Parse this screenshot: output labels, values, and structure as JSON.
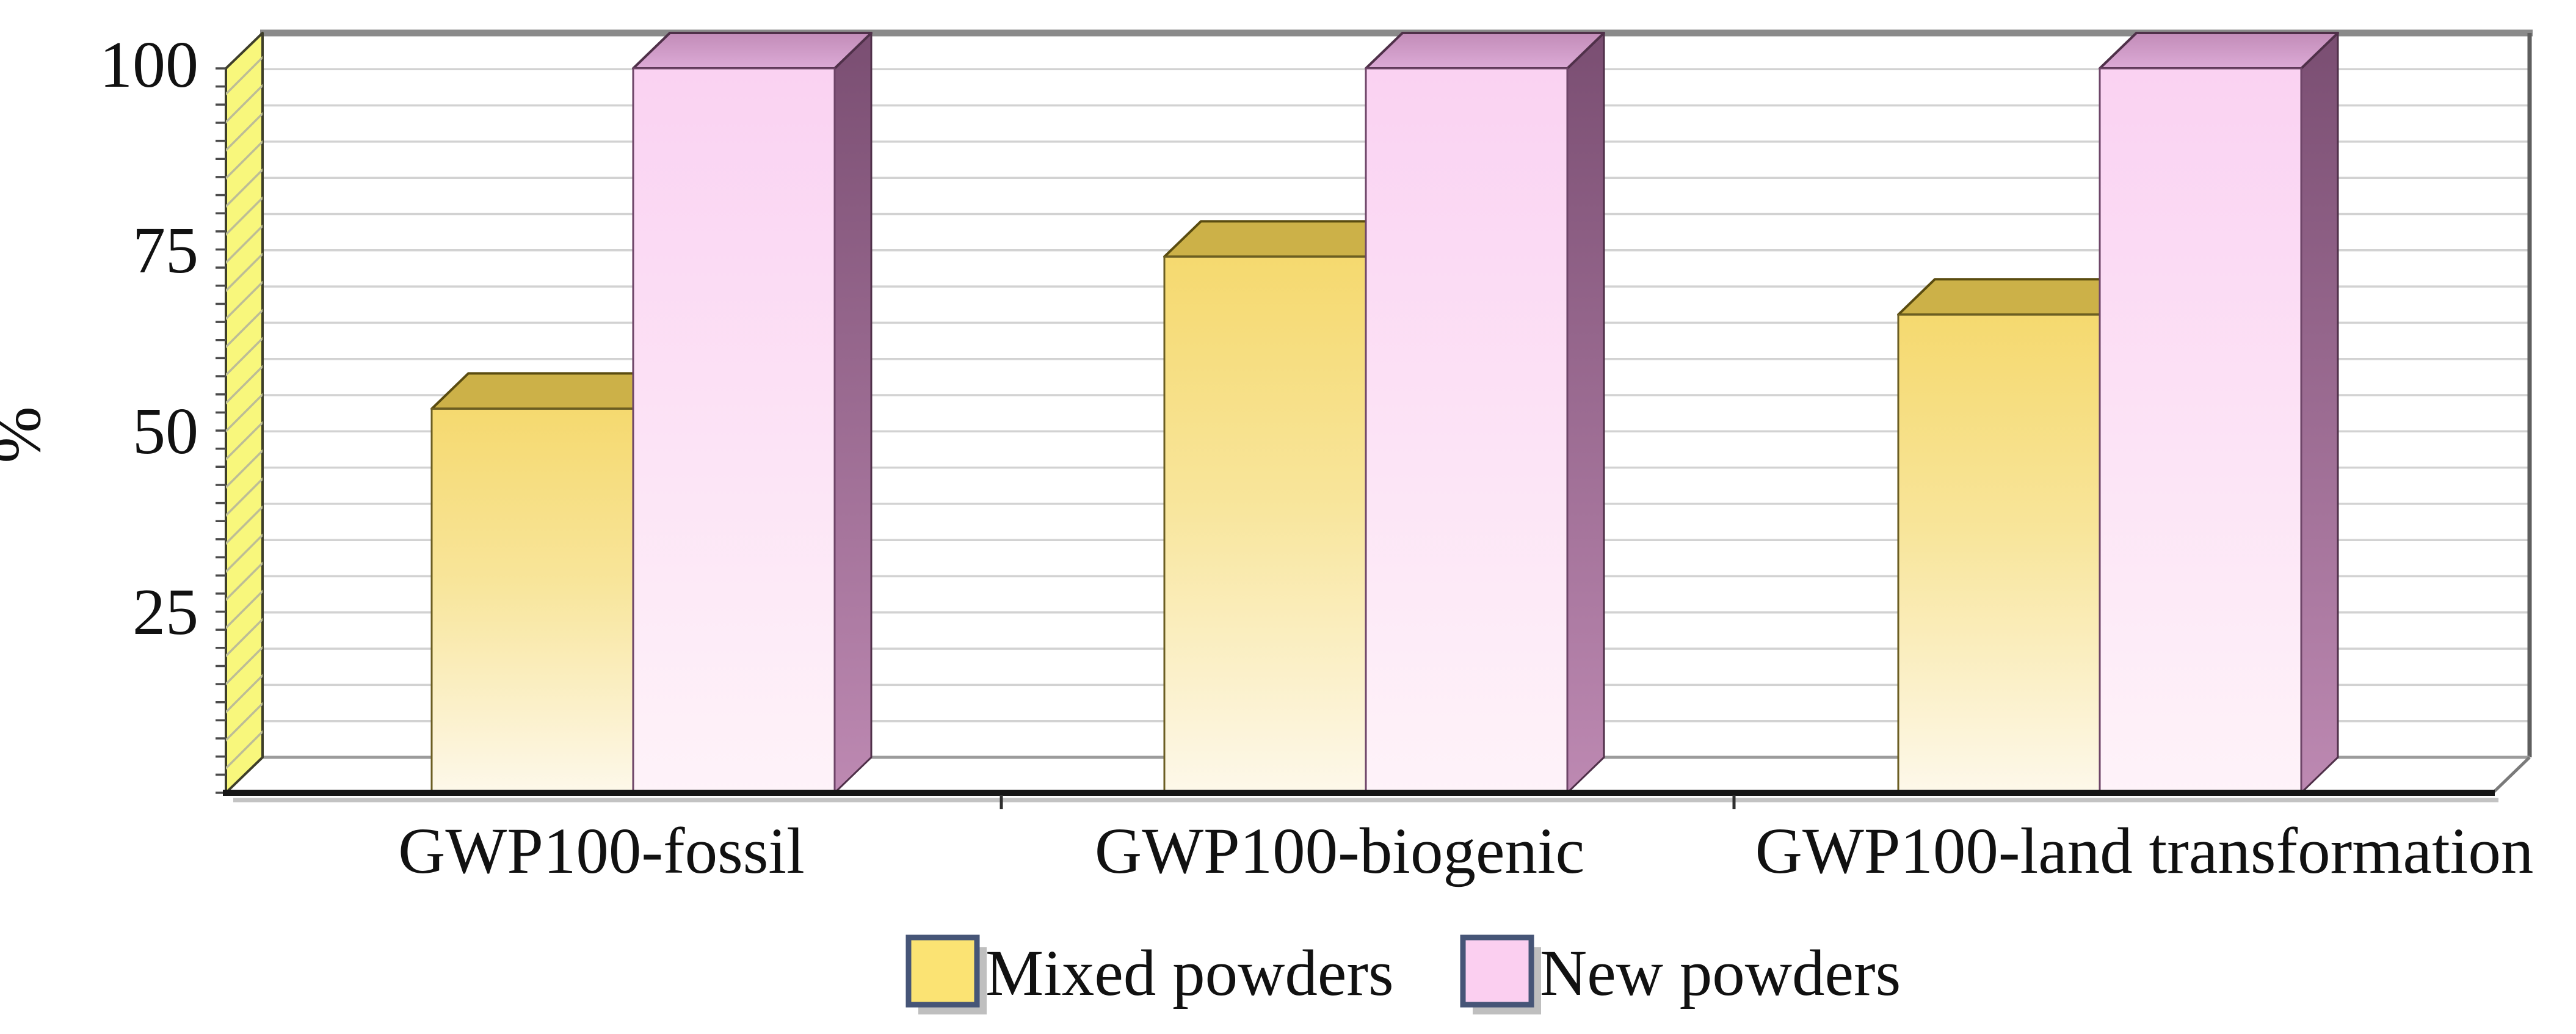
{
  "chart_data": {
    "type": "bar",
    "style": "3d-bars",
    "title": "",
    "xlabel": "",
    "ylabel": "%",
    "categories": [
      "GWP100-fossil",
      "GWP100-biogenic",
      "GWP100-land transformation"
    ],
    "series": [
      {
        "name": "Mixed powders",
        "values": [
          53,
          74,
          66
        ]
      },
      {
        "name": "New powders",
        "values": [
          100,
          100,
          100
        ]
      }
    ],
    "ylim": [
      0,
      100
    ],
    "yticks": [
      100,
      75,
      50,
      25
    ],
    "minor_grid_step": 5,
    "minor_tick_step": 2.5,
    "grid": "horizontal-minor",
    "legend_position": "bottom-center"
  },
  "colors": {
    "background": "#ffffff",
    "gridline": "#d2d2d2",
    "top_back_line": "#8a8a8a",
    "right_edge_line": "#5f5f5f",
    "back_floor_line": "#9c9c9c",
    "floor_diag_line": "#7a7a7a",
    "front_axis_line": "#161616",
    "axis_shadow": "#c3c3c3",
    "boundary_tick": "#2f2f2f",
    "wall_fill": "#f8f77c",
    "wall_hatch": "#bdbd96",
    "wall_stroke": "#3e3e2a",
    "wall_tick": "#4a4a4a",
    "yellow_top": "#ccb148",
    "yellow_top_stroke": "#5a4c10",
    "yellow_front_top": "#f5d96f",
    "yellow_front_mid": "#f8e59a",
    "yellow_front_bottom": "#fdf8ea",
    "yellow_front_stroke": "#6b5e23",
    "yellow_side": "#d9c058",
    "pink_front_top": "#fad2f2",
    "pink_front_bottom": "#fef3f9",
    "pink_front_stroke": "#6e4568",
    "pink_top_light": "#dcaad6",
    "pink_top_dark": "#c28cb8",
    "pink_top_stroke": "#4f3049",
    "pink_side_top": "#7a4e72",
    "pink_side_bottom": "#bd89b2",
    "legend_border": "#465577",
    "legend_shadow": "#bfbfbf",
    "legend_swatch_mixed": "#fbe373",
    "legend_swatch_new": "#fbcff0",
    "text": "#111111"
  }
}
